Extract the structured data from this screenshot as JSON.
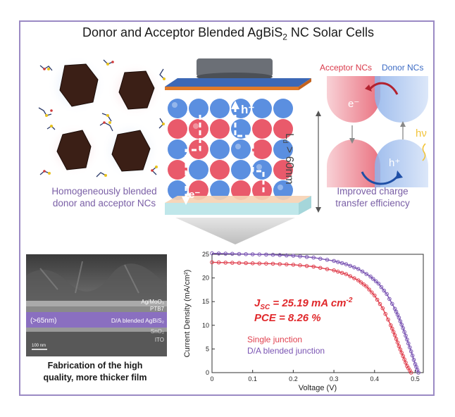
{
  "title_main": "Donor and Acceptor Blended AgBiS",
  "title_sub": "2",
  "title_end": " NC Solar Cells",
  "left_panel": {
    "caption_line1": "Homogeneously blended",
    "caption_line2": "donor and acceptor NCs"
  },
  "device": {
    "hole_label": "h⁺",
    "electron_label": "e⁻",
    "diffusion_label": "L",
    "diffusion_sub": "d",
    "diffusion_value": "> 60nm"
  },
  "right_panel": {
    "acceptor_label": "Acceptor NCs",
    "donor_label": "Donor NCs",
    "electron_label": "e⁻",
    "hole_label": "h⁺",
    "photon_label": "hν",
    "caption_line1": "Improved charge",
    "caption_line2": "transfer efficiency"
  },
  "sem": {
    "layer_ag": "Ag/MoO₃",
    "layer_ptb7": "PTB7",
    "layer_thickness": "(>65nm)",
    "layer_da": "D/A blended AgBiS₂",
    "layer_sno2": "SnO₂",
    "layer_ito": "ITO",
    "scale": "100 nm",
    "caption_line1": "Fabrication of the high",
    "caption_line2": "quality, more thicker film"
  },
  "chart_data": {
    "type": "line",
    "xlabel": "Voltage (V)",
    "ylabel": "Current Density (mA/cm²)",
    "xlim": [
      0,
      0.52
    ],
    "ylim": [
      0,
      25
    ],
    "xticks": [
      "0",
      "0.1",
      "0.2",
      "0.3",
      "0.4",
      "0.5"
    ],
    "yticks": [
      "0",
      "5",
      "10",
      "15",
      "20",
      "25"
    ],
    "annotation_jsc": "J",
    "annotation_jsc_sub": "SC",
    "annotation_jsc_value": " = 25.19 mA cm",
    "annotation_jsc_sup": "-2",
    "annotation_pce": "PCE = 8.26 %",
    "annotation_color": "#e0282b",
    "series": [
      {
        "name": "Single junction",
        "color": "#e0414f",
        "x": [
          0,
          0.05,
          0.1,
          0.15,
          0.2,
          0.25,
          0.3,
          0.33,
          0.36,
          0.38,
          0.4,
          0.42,
          0.44,
          0.45,
          0.46,
          0.47,
          0.48,
          0.49
        ],
        "y": [
          23.3,
          23.2,
          23.1,
          23.0,
          22.8,
          22.4,
          21.6,
          20.8,
          19.5,
          18.2,
          16.3,
          13.6,
          10.0,
          7.9,
          5.6,
          3.5,
          1.4,
          0
        ]
      },
      {
        "name": "D/A blended junction",
        "color": "#7a55b3",
        "x": [
          0,
          0.05,
          0.1,
          0.15,
          0.2,
          0.25,
          0.3,
          0.33,
          0.36,
          0.39,
          0.41,
          0.43,
          0.45,
          0.46,
          0.47,
          0.48,
          0.49,
          0.5,
          0.508
        ],
        "y": [
          25.2,
          25.1,
          25.0,
          24.9,
          24.7,
          24.3,
          23.6,
          22.9,
          21.9,
          20.3,
          18.8,
          16.6,
          13.5,
          11.6,
          9.4,
          7.0,
          4.5,
          1.8,
          0
        ]
      }
    ]
  },
  "colors": {
    "frame": "#9b8ac4",
    "acceptor": "#e24b5a",
    "donor": "#4f7fd6",
    "caption": "#7a5fa6"
  }
}
